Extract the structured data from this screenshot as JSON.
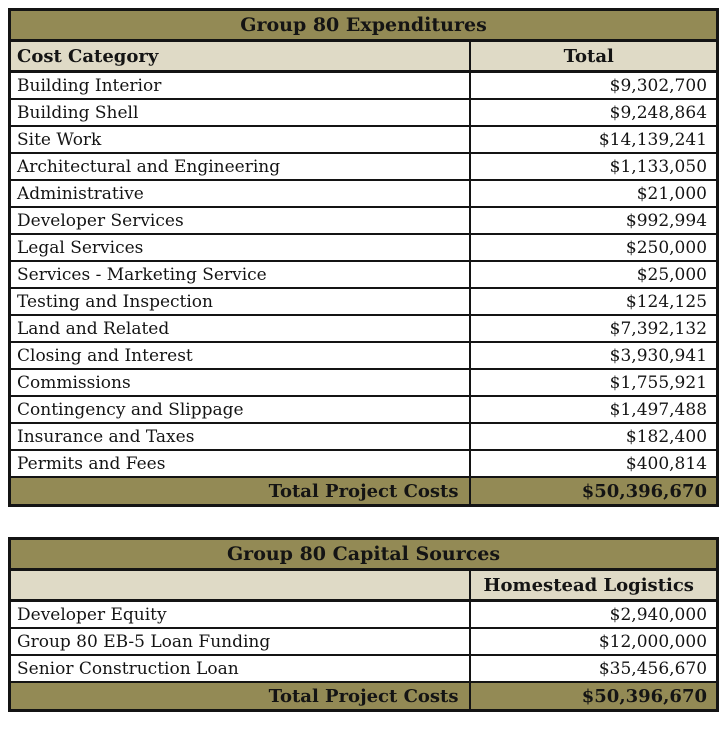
{
  "colors": {
    "band_olive": "#938A55",
    "band_beige": "#DFDAC6",
    "row_white": "#FFFFFF",
    "border_black": "#141414",
    "text_black": "#141414"
  },
  "expenditures": {
    "title": "Group 80 Expenditures",
    "columns": {
      "category": "Cost Category",
      "total": "Total"
    },
    "rows": [
      {
        "category": "Building Interior",
        "total": "$9,302,700"
      },
      {
        "category": "Building Shell",
        "total": "$9,248,864"
      },
      {
        "category": "Site Work",
        "total": "$14,139,241"
      },
      {
        "category": "Architectural and Engineering",
        "total": "$1,133,050"
      },
      {
        "category": "Administrative",
        "total": "$21,000"
      },
      {
        "category": "Developer Services",
        "total": "$992,994"
      },
      {
        "category": "Legal Services",
        "total": "$250,000"
      },
      {
        "category": "Services - Marketing Service",
        "total": "$25,000"
      },
      {
        "category": "Testing and Inspection",
        "total": "$124,125"
      },
      {
        "category": "Land and Related",
        "total": "$7,392,132"
      },
      {
        "category": "Closing and Interest",
        "total": "$3,930,941"
      },
      {
        "category": "Commissions",
        "total": "$1,755,921"
      },
      {
        "category": "Contingency and Slippage",
        "total": "$1,497,488"
      },
      {
        "category": "Insurance and Taxes",
        "total": "$182,400"
      },
      {
        "category": "Permits and Fees",
        "total": "$400,814"
      }
    ],
    "total_row": {
      "label": "Total Project Costs",
      "total": "$50,396,670"
    }
  },
  "capital_sources": {
    "title": "Group 80 Capital Sources",
    "columns": {
      "category": "",
      "total": "Homestead Logistics"
    },
    "rows": [
      {
        "category": "Developer Equity",
        "total": "$2,940,000"
      },
      {
        "category": "Group 80 EB-5 Loan Funding",
        "total": "$12,000,000"
      },
      {
        "category": "Senior Construction Loan",
        "total": "$35,456,670"
      }
    ],
    "total_row": {
      "label": "Total Project Costs",
      "total": "$50,396,670"
    }
  }
}
